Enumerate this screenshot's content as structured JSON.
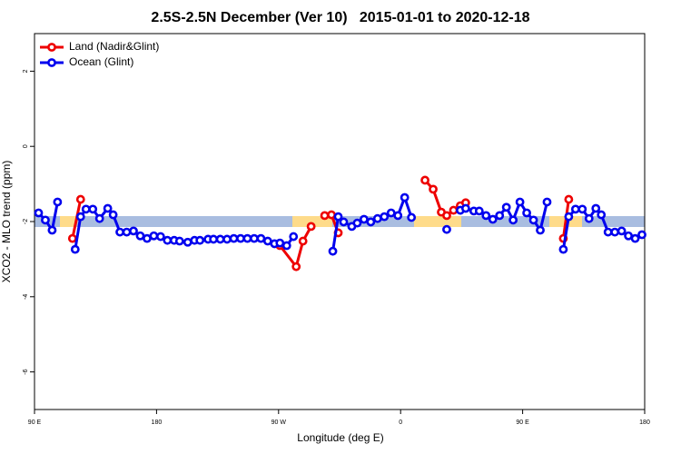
{
  "chart_data": {
    "type": "line",
    "title": "2.5S-2.5N December (Ver 10)   2015-01-01 to 2020-12-18",
    "x_label": "Longitude (deg E)",
    "y_label": "XCO2 - MLO trend (ppm)",
    "xlim": [
      90,
      540
    ],
    "xticks": [
      {
        "value": 90,
        "label": "90 E"
      },
      180,
      {
        "value": 270,
        "label": "90 W"
      },
      {
        "value": 360,
        "label": "0"
      },
      {
        "value": 450,
        "label": "90 E"
      },
      180
    ],
    "ylim": [
      -7,
      3
    ],
    "yticks": [
      2,
      0,
      -2,
      -4,
      -6
    ],
    "legend": "top-left",
    "series": [
      {
        "name": "Land (Nadir&Glint)",
        "color": "#ee0000",
        "x": [
          118,
          124,
          null,
          271,
          283,
          288,
          294,
          null,
          304,
          309,
          314,
          null,
          378,
          384,
          390,
          394,
          399,
          404,
          408,
          null,
          480,
          484
        ],
        "values": [
          -2.45,
          -1.41,
          null,
          -2.64,
          -3.2,
          -2.52,
          -2.13,
          null,
          -1.84,
          -1.82,
          -2.3,
          null,
          -0.9,
          -1.14,
          -1.75,
          -1.84,
          -1.7,
          -1.58,
          -1.5,
          null,
          -2.45,
          -1.41
        ]
      },
      {
        "name": "Ocean (Glint)",
        "color": "#0000ee",
        "x": [
          93,
          98,
          103,
          107,
          null,
          120,
          124,
          128,
          133,
          138,
          144,
          148,
          153,
          158,
          163,
          168,
          173,
          178,
          183,
          188,
          193,
          197,
          203,
          208,
          212,
          218,
          222,
          227,
          232,
          237,
          242,
          247,
          252,
          257,
          262,
          267,
          271,
          276,
          281,
          null,
          310,
          314,
          318,
          324,
          328,
          333,
          338,
          343,
          348,
          353,
          358,
          363,
          368,
          null,
          394,
          null,
          404,
          408,
          414,
          418,
          423,
          428,
          433,
          438,
          443,
          448,
          453,
          458,
          463,
          468,
          null,
          480,
          484,
          489,
          494,
          499,
          504,
          508,
          513,
          518,
          523,
          528,
          533,
          538
        ],
        "values": [
          -1.77,
          -1.96,
          -2.23,
          -1.48,
          null,
          -2.74,
          -1.87,
          -1.67,
          -1.67,
          -1.92,
          -1.65,
          -1.82,
          -2.28,
          -2.28,
          -2.25,
          -2.38,
          -2.45,
          -2.38,
          -2.4,
          -2.5,
          -2.5,
          -2.52,
          -2.55,
          -2.5,
          -2.5,
          -2.47,
          -2.47,
          -2.47,
          -2.47,
          -2.45,
          -2.45,
          -2.45,
          -2.45,
          -2.45,
          -2.52,
          -2.59,
          -2.57,
          -2.64,
          -2.4,
          null,
          -2.79,
          -1.87,
          -2.01,
          -2.13,
          -2.04,
          -1.94,
          -2.01,
          -1.92,
          -1.87,
          -1.77,
          -1.84,
          -1.36,
          -1.89,
          null,
          -2.21,
          null,
          -1.7,
          -1.65,
          -1.72,
          -1.72,
          -1.84,
          -1.94,
          -1.84,
          -1.62,
          -1.96,
          -1.48,
          -1.77,
          -1.96,
          -2.23,
          -1.48,
          null,
          -2.74,
          -1.87,
          -1.67,
          -1.67,
          -1.92,
          -1.65,
          -1.82,
          -2.28,
          -2.28,
          -2.25,
          -2.38,
          -2.45,
          -2.35
        ]
      }
    ]
  }
}
